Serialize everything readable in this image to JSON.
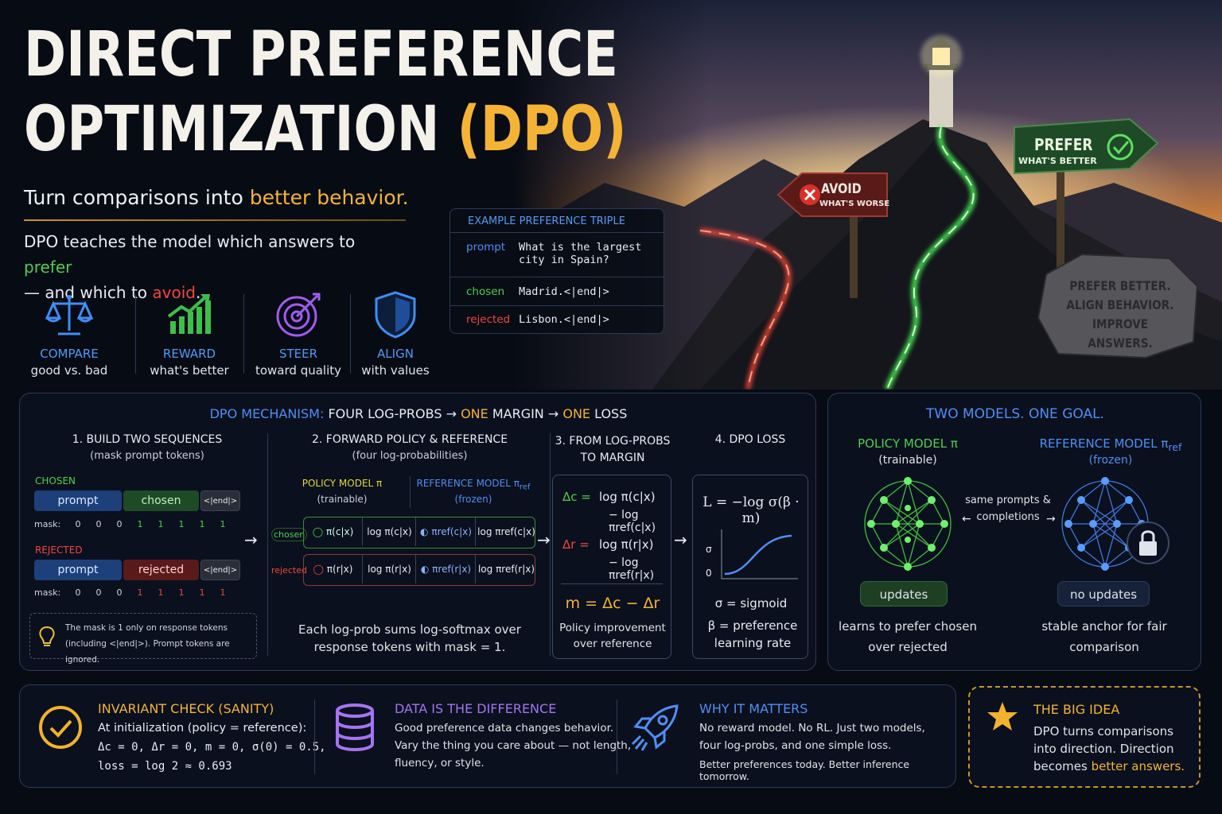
{
  "title_line1": "DIRECT PREFERENCE",
  "title_line2a": "OPTIMIZATION ",
  "title_line2b": "(DPO)",
  "subtitle_a": "Turn comparisons into ",
  "subtitle_b": "better behavior.",
  "desc_a": "DPO teaches the model which answers to ",
  "desc_prefer": "prefer",
  "desc_b": "— and which to ",
  "desc_avoid": "avoid",
  "desc_end": ".",
  "features": [
    {
      "icon": "scales-icon",
      "title": "COMPARE",
      "sub": "good vs. bad"
    },
    {
      "icon": "growth-chart-icon",
      "title": "REWARD",
      "sub": "what's better"
    },
    {
      "icon": "target-icon",
      "title": "STEER",
      "sub": "toward quality"
    },
    {
      "icon": "shield-icon",
      "title": "ALIGN",
      "sub": "with values"
    }
  ],
  "triple": {
    "header": "EXAMPLE PREFERENCE TRIPLE",
    "prompt_key": "prompt",
    "prompt_val": "What is the largest city in Spain?",
    "chosen_key": "chosen",
    "chosen_val": "Madrid.<|end|>",
    "rejected_key": "rejected",
    "rejected_val": "Lisbon.<|end|>"
  },
  "signs": {
    "avoid": "AVOID",
    "avoid_sub": "WHAT'S WORSE",
    "prefer": "PREFER",
    "prefer_sub": "WHAT'S BETTER",
    "rock_1": "PREFER BETTER.",
    "rock_2": "ALIGN BEHAVIOR.",
    "rock_3": "IMPROVE ANSWERS."
  },
  "mech": {
    "head_a": "DPO MECHANISM:",
    "head_b": " FOUR LOG-PROBS → ",
    "head_one1": "ONE",
    "head_c": " MARGIN → ",
    "head_one2": "ONE",
    "head_d": " LOSS",
    "s1_title": "1. BUILD TWO SEQUENCES",
    "s1_sub": "(mask prompt tokens)",
    "chosen_label": "CHOSEN",
    "rejected_label": "REJECTED",
    "seg_prompt": "prompt",
    "seg_chosen": "chosen",
    "seg_rejected": "rejected",
    "seg_end": "<|end|>",
    "mask_label": "mask:",
    "mask_values": [
      "0",
      "0",
      "0",
      "1",
      "1",
      "1",
      "1",
      "1"
    ],
    "note": "The mask is 1 only on response tokens (including <|end|>). Prompt tokens are ignored.",
    "s2_title": "2. FORWARD POLICY & REFERENCE",
    "s2_sub": "(four log-probabilities)",
    "policy_label": "POLICY MODEL π",
    "policy_sub": "(trainable)",
    "ref_label": "REFERENCE MODEL π",
    "ref_sub_script": "ref",
    "ref_sub": "(frozen)",
    "row_chosen": "chosen",
    "row_rejected": "rejected",
    "pi_c": "π(c|x)",
    "logpi_c": "log π(c|x)",
    "piref_c": "πref(c|x)",
    "logpiref_c": "log πref(c|x)",
    "pi_r": "π(r|x)",
    "logpi_r": "log π(r|x)",
    "piref_r": "πref(r|x)",
    "logpiref_r": "log πref(r|x)",
    "s2_note": "Each log-prob sums log-softmax over response tokens with mask = 1.",
    "s3_title": "3. FROM LOG-PROBS TO MARGIN",
    "dc_lhs": "Δc =",
    "dc_1": "log π(c|x)",
    "dc_2": "− log πref(c|x)",
    "dr_lhs": "Δr =",
    "dr_1": "log π(r|x)",
    "dr_2": "− log πref(r|x)",
    "margin": "m = Δc − Δr",
    "margin_note": "Policy improvement over reference",
    "s4_title": "4. DPO LOSS",
    "loss": "L = −log σ(β · m)",
    "axis_sigma": "σ",
    "axis_zero": "0",
    "sigma_def": "σ = sigmoid",
    "beta_def": "β = preference learning rate"
  },
  "two": {
    "title": "TWO MODELS. ONE GOAL.",
    "policy": "POLICY MODEL π",
    "policy_sub": "(trainable)",
    "ref": "REFERENCE MODEL π",
    "ref_script": "ref",
    "ref_sub": "(frozen)",
    "same": "same prompts & completions",
    "updates": "updates",
    "no_updates": "no updates",
    "policy_desc": "learns to prefer chosen over rejected",
    "ref_desc": "stable anchor for fair comparison"
  },
  "bottom": {
    "inv_title": "INVARIANT CHECK (SANITY)",
    "inv_1": "At initialization (policy = reference):",
    "inv_2": "Δc = 0, Δr = 0, m = 0, σ(0) = 0.5,",
    "inv_3": "loss = log 2 ≈ 0.693",
    "data_title": "DATA IS THE DIFFERENCE",
    "data_1": "Good preference data changes behavior.",
    "data_2": "Vary the thing you care about — not length,",
    "data_3": "fluency, or style.",
    "why_title": "WHY IT MATTERS",
    "why_1": "No reward model. No RL. Just two models,",
    "why_2": "four log-probs, and one simple loss.",
    "why_3": "Better preferences today. Better inference tomorrow.",
    "big_title": "THE BIG IDEA",
    "big_1": "DPO turns comparisons",
    "big_2": "into direction. Direction",
    "big_3a": "becomes ",
    "big_3b": "better answers."
  },
  "colors": {
    "accent": "#f5b335",
    "green": "#4ed04e",
    "red": "#f0473e",
    "blue": "#4f8ff7",
    "purple": "#a574f2"
  }
}
